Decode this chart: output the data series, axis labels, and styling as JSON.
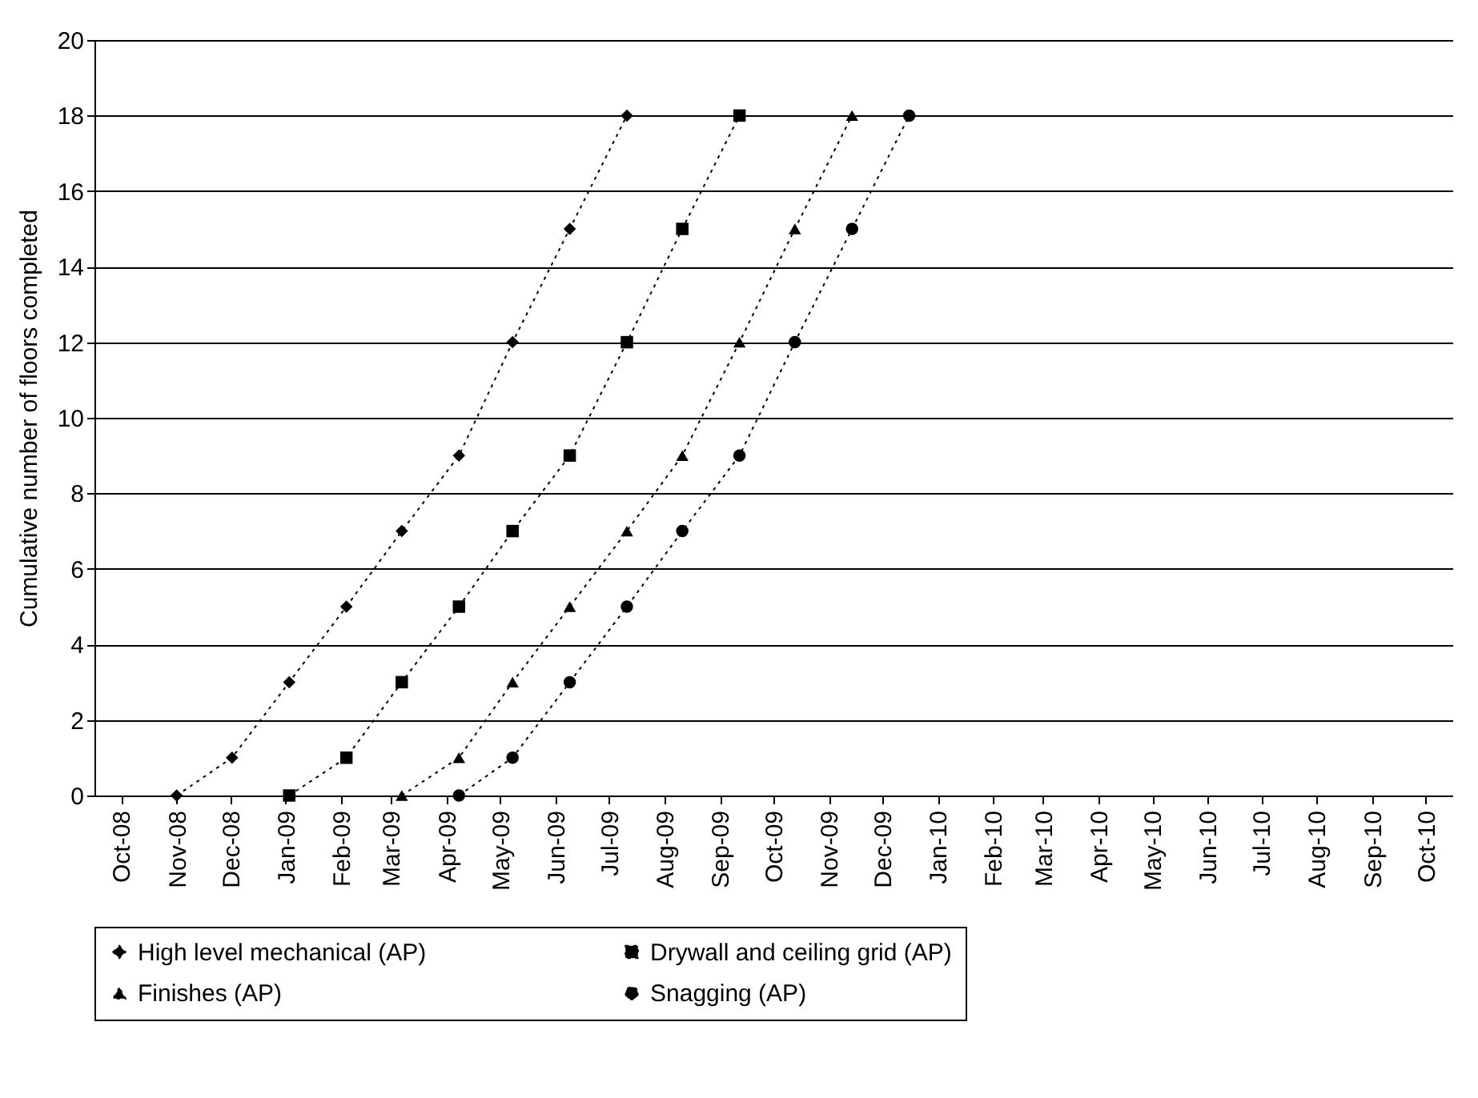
{
  "chart_data": {
    "type": "line",
    "ylabel": "Cumulative number of floors completed",
    "xlim": [
      "2008-09-16",
      "2010-10-16"
    ],
    "xticks": [
      {
        "value": "2008-10-01",
        "label": "Oct-08"
      },
      {
        "value": "2008-11-01",
        "label": "Nov-08"
      },
      {
        "value": "2008-12-01",
        "label": "Dec-08"
      },
      {
        "value": "2009-01-01",
        "label": "Jan-09"
      },
      {
        "value": "2009-02-01",
        "label": "Feb-09"
      },
      {
        "value": "2009-03-01",
        "label": "Mar-09"
      },
      {
        "value": "2009-04-01",
        "label": "Apr-09"
      },
      {
        "value": "2009-05-01",
        "label": "May-09"
      },
      {
        "value": "2009-06-01",
        "label": "Jun-09"
      },
      {
        "value": "2009-07-01",
        "label": "Jul-09"
      },
      {
        "value": "2009-08-01",
        "label": "Aug-09"
      },
      {
        "value": "2009-09-01",
        "label": "Sep-09"
      },
      {
        "value": "2009-10-01",
        "label": "Oct-09"
      },
      {
        "value": "2009-11-01",
        "label": "Nov-09"
      },
      {
        "value": "2009-12-01",
        "label": "Dec-09"
      },
      {
        "value": "2010-01-01",
        "label": "Jan-10"
      },
      {
        "value": "2010-02-01",
        "label": "Feb-10"
      },
      {
        "value": "2010-03-01",
        "label": "Mar-10"
      },
      {
        "value": "2010-04-01",
        "label": "Apr-10"
      },
      {
        "value": "2010-05-01",
        "label": "May-10"
      },
      {
        "value": "2010-06-01",
        "label": "Jun-10"
      },
      {
        "value": "2010-07-01",
        "label": "Jul-10"
      },
      {
        "value": "2010-08-01",
        "label": "Aug-10"
      },
      {
        "value": "2010-09-01",
        "label": "Sep-10"
      },
      {
        "value": "2010-10-01",
        "label": "Oct-10"
      }
    ],
    "ylim": [
      0,
      20
    ],
    "yticks": [
      0,
      2,
      4,
      6,
      8,
      10,
      12,
      14,
      16,
      18,
      20
    ],
    "grid": "y",
    "legend": "bottom",
    "line_style": "dotted",
    "series": [
      {
        "name": "High level mechanical (AP)",
        "color": "#000000",
        "marker": "diamond",
        "x": [
          "2008-11-01",
          "2008-12-02",
          "2009-01-03",
          "2009-02-04",
          "2009-03-07",
          "2009-04-08",
          "2009-05-08",
          "2009-06-09",
          "2009-07-11"
        ],
        "values": [
          0,
          1,
          3,
          5,
          7,
          9,
          12,
          15,
          18
        ]
      },
      {
        "name": "Drywall and ceiling grid (AP)",
        "color": "#000000",
        "marker": "square",
        "x": [
          "2009-01-03",
          "2009-02-04",
          "2009-03-07",
          "2009-04-08",
          "2009-05-08",
          "2009-06-09",
          "2009-07-11",
          "2009-08-11",
          "2009-09-12"
        ],
        "values": [
          0,
          1,
          3,
          5,
          7,
          9,
          12,
          15,
          18
        ]
      },
      {
        "name": "Finishes (AP)",
        "color": "#000000",
        "marker": "triangle",
        "x": [
          "2009-03-07",
          "2009-04-08",
          "2009-05-08",
          "2009-06-09",
          "2009-07-11",
          "2009-08-11",
          "2009-09-12",
          "2009-10-13",
          "2009-11-14"
        ],
        "values": [
          0,
          1,
          3,
          5,
          7,
          9,
          12,
          15,
          18
        ]
      },
      {
        "name": "Snagging (AP)",
        "color": "#000000",
        "marker": "circle",
        "x": [
          "2009-04-08",
          "2009-05-08",
          "2009-06-09",
          "2009-07-11",
          "2009-08-11",
          "2009-09-12",
          "2009-10-13",
          "2009-11-14",
          "2009-12-16"
        ],
        "values": [
          0,
          1,
          3,
          5,
          7,
          9,
          12,
          15,
          18
        ]
      }
    ]
  }
}
